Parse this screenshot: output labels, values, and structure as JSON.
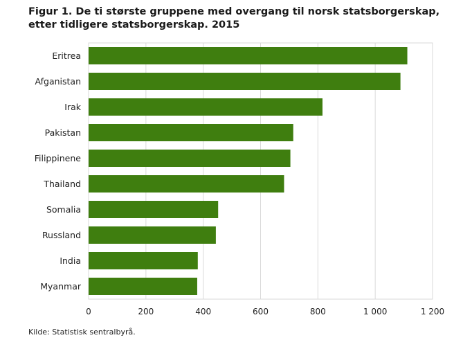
{
  "chart_data": {
    "type": "bar",
    "orientation": "horizontal",
    "title_line1": "Figur 1. De ti største gruppene med overgang til norsk statsborgerskap,",
    "title_line2": "etter tidligere statsborgerskap. 2015",
    "categories": [
      "Eritrea",
      "Afganistan",
      "Irak",
      "Pakistan",
      "Filippinene",
      "Thailand",
      "Somalia",
      "Russland",
      "India",
      "Myanmar"
    ],
    "values": [
      1112,
      1088,
      816,
      714,
      704,
      682,
      452,
      444,
      381,
      379
    ],
    "xlim": [
      0,
      1200
    ],
    "xticks": [
      0,
      200,
      400,
      600,
      800,
      1000,
      1200
    ],
    "xtick_labels": [
      "0",
      "200",
      "400",
      "600",
      "800",
      "1 000",
      "1 200"
    ],
    "grid": "vertical",
    "bar_color": "#3f7e0f",
    "grid_color": "#d9d9d9"
  },
  "footer": {
    "source": "Kilde: Statistisk sentralbyrå."
  }
}
